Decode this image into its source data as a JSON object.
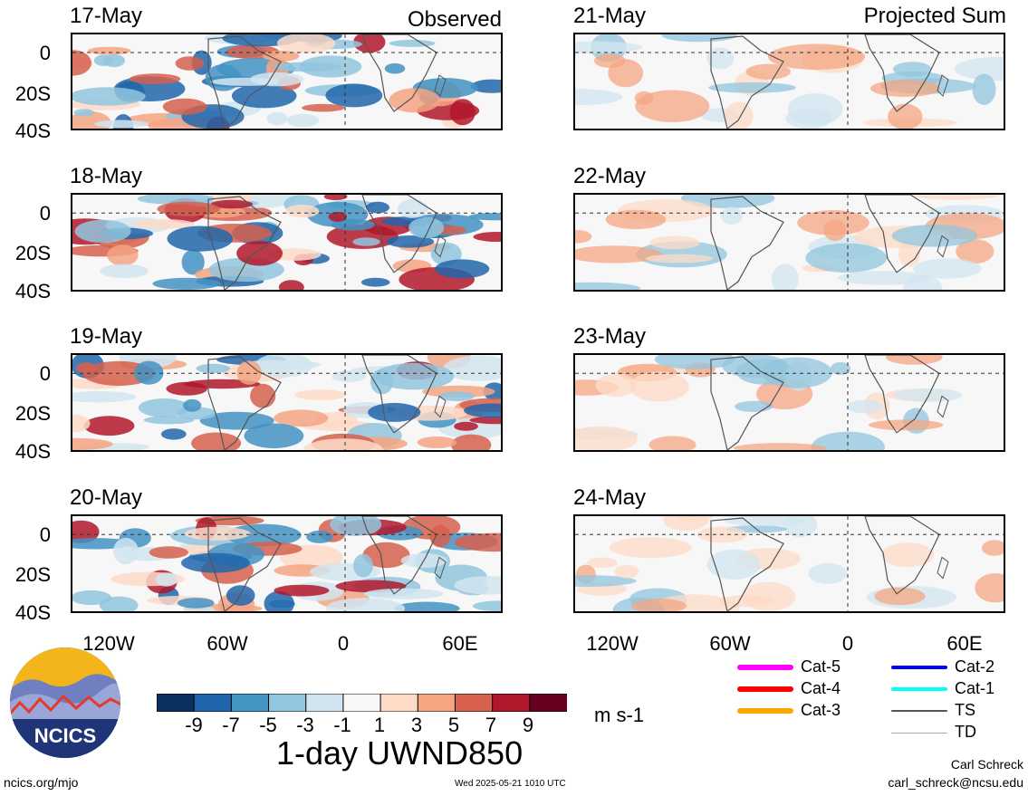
{
  "observed": {
    "label": "Observed",
    "dates": [
      "17-May",
      "18-May",
      "19-May",
      "20-May"
    ]
  },
  "projected": {
    "label": "Projected Sum",
    "dates": [
      "21-May",
      "22-May",
      "23-May",
      "24-May"
    ]
  },
  "lat_ticks": [
    "0",
    "20S",
    "40S"
  ],
  "lon_ticks": [
    "120W",
    "60W",
    "0",
    "60E"
  ],
  "colorbar": {
    "ticks": [
      "-9",
      "-7",
      "-5",
      "-3",
      "-1",
      "1",
      "3",
      "5",
      "7",
      "9"
    ],
    "colors": [
      "#0a3060",
      "#2166ac",
      "#4393c3",
      "#92c5de",
      "#d1e5f0",
      "#f7f7f7",
      "#fddbc7",
      "#f4a582",
      "#d6604d",
      "#b2182b",
      "#67001f"
    ],
    "units": "m s-1",
    "title": "1-day UWND850"
  },
  "legend": [
    {
      "label": "Cat-5",
      "color": "#ff00ff"
    },
    {
      "label": "Cat-4",
      "color": "#ff0000"
    },
    {
      "label": "Cat-3",
      "color": "#ffa500"
    },
    {
      "label": "Cat-2",
      "color": "#0000ff"
    },
    {
      "label": "Cat-1",
      "color": "#00ffff"
    },
    {
      "label": "TS",
      "color": "#555555"
    },
    {
      "label": "TD",
      "color": "#aaaaaa"
    }
  ],
  "logo": {
    "text": "NCICS"
  },
  "footer": {
    "left_url": "ncics.org/mjo",
    "timestamp": "Wed 2025-05-21 1010 UTC",
    "author": "Carl Schreck",
    "email": "carl_schreck@ncsu.edu"
  }
}
